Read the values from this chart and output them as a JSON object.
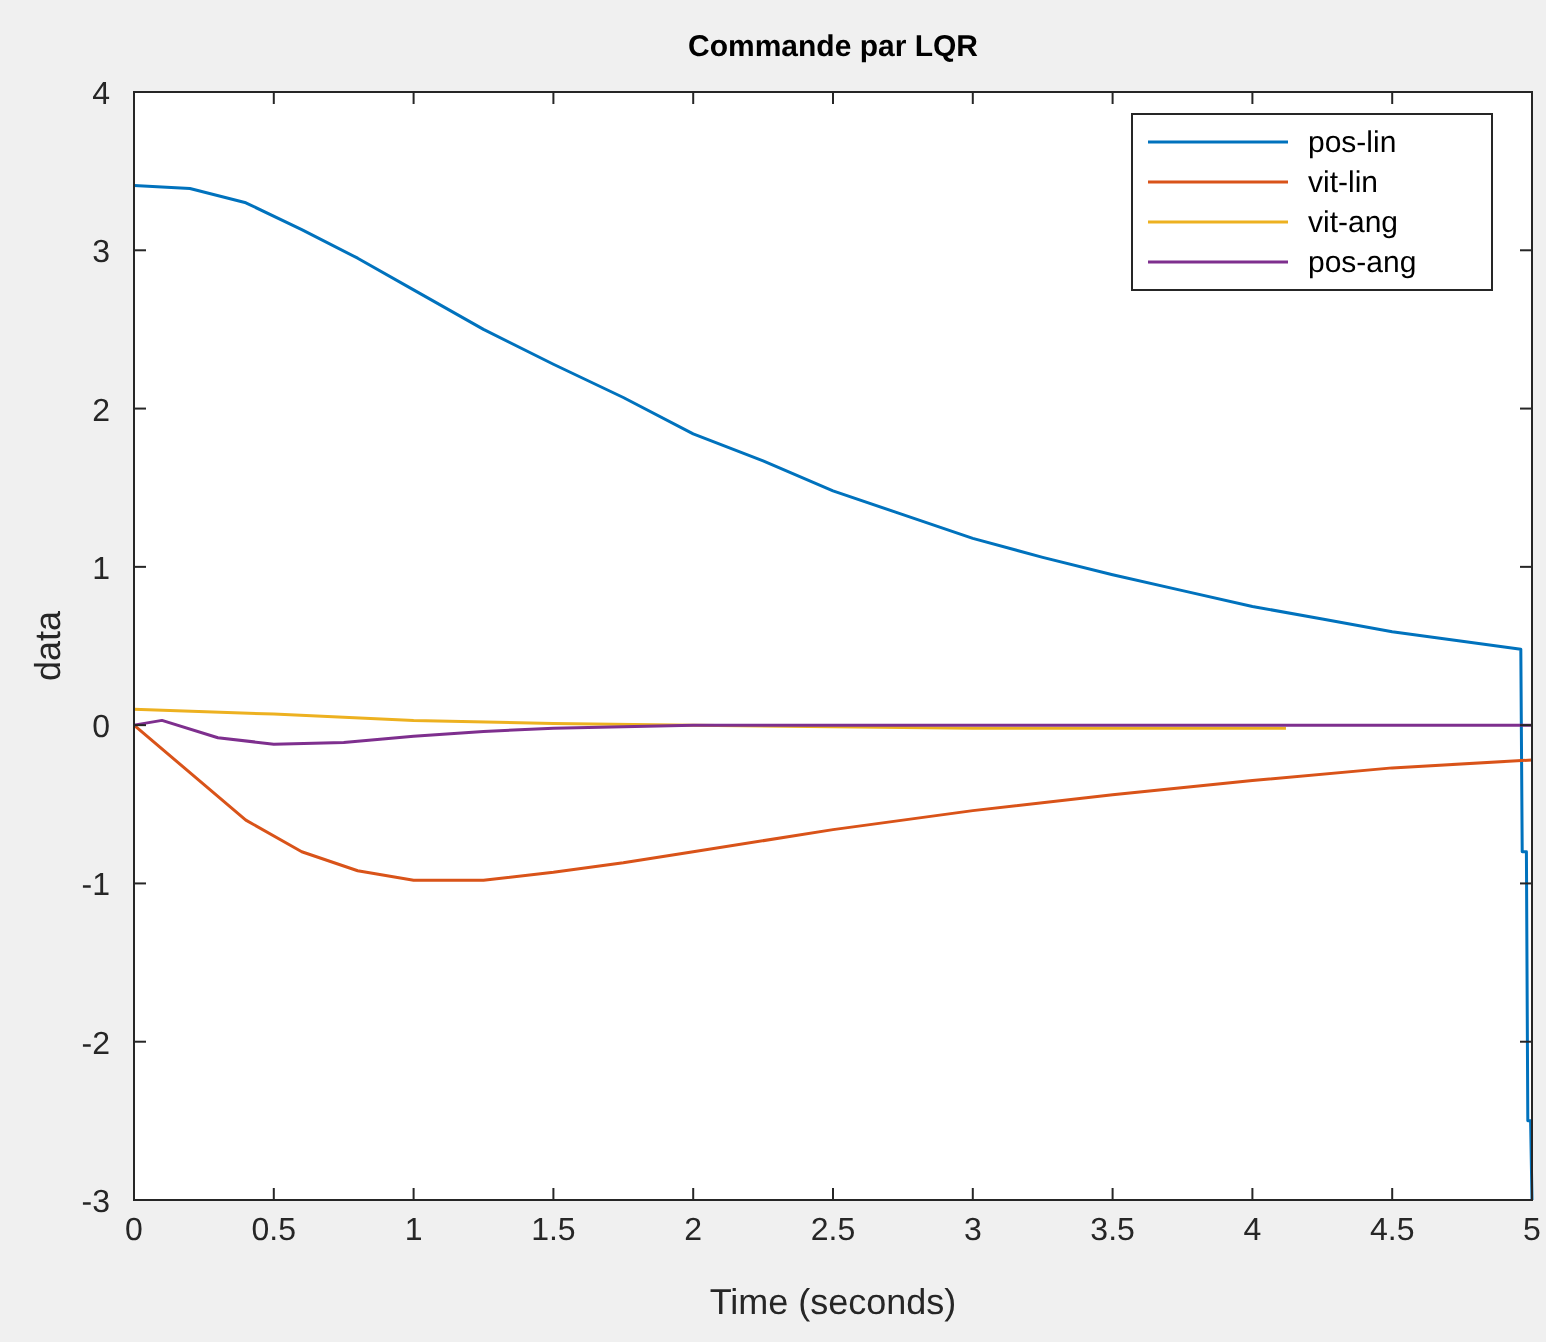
{
  "chart_data": {
    "type": "line",
    "title": "Commande par LQR",
    "xlabel": "Time (seconds)",
    "ylabel": "data",
    "xlim": [
      0,
      5
    ],
    "ylim": [
      -3,
      4
    ],
    "xticks": [
      0,
      0.5,
      1,
      1.5,
      2,
      2.5,
      3,
      3.5,
      4,
      4.5,
      5
    ],
    "yticks": [
      -3,
      -2,
      -1,
      0,
      1,
      2,
      3,
      4
    ],
    "grid": false,
    "legend": "top right",
    "line_style": "solid",
    "marker": "none",
    "series": [
      {
        "name": "pos-lin",
        "color": "#0072bd",
        "x": [
          0,
          0.2,
          0.4,
          0.6,
          0.8,
          1,
          1.25,
          1.5,
          1.75,
          2,
          2.25,
          2.5,
          2.75,
          3,
          3.25,
          3.5,
          3.75,
          4,
          4.25,
          4.5,
          4.75,
          4.96,
          4.965,
          4.98,
          4.985,
          4.995,
          5
        ],
        "values": [
          3.41,
          3.39,
          3.3,
          3.13,
          2.95,
          2.75,
          2.5,
          2.28,
          2.07,
          1.84,
          1.67,
          1.48,
          1.33,
          1.18,
          1.06,
          0.95,
          0.85,
          0.75,
          0.67,
          0.59,
          0.53,
          0.48,
          -0.8,
          -0.8,
          -2.5,
          -2.5,
          -3
        ]
      },
      {
        "name": "vit-lin",
        "color": "#d95319",
        "x": [
          0,
          0.2,
          0.4,
          0.6,
          0.8,
          1,
          1.25,
          1.5,
          1.75,
          2,
          2.5,
          3,
          3.5,
          4,
          4.5,
          5
        ],
        "values": [
          0,
          -0.3,
          -0.6,
          -0.8,
          -0.92,
          -0.98,
          -0.98,
          -0.93,
          -0.87,
          -0.8,
          -0.66,
          -0.54,
          -0.44,
          -0.35,
          -0.27,
          -0.22
        ]
      },
      {
        "name": "vit-ang",
        "color": "#edb120",
        "x": [
          0,
          0.5,
          1,
          1.5,
          2,
          3,
          4.12
        ],
        "values": [
          0.1,
          0.07,
          0.03,
          0.01,
          0,
          -0.02,
          -0.02
        ]
      },
      {
        "name": "pos-ang",
        "color": "#7e2f8e",
        "x": [
          0,
          0.1,
          0.3,
          0.5,
          0.75,
          1,
          1.25,
          1.5,
          2,
          5
        ],
        "values": [
          0,
          0.03,
          -0.08,
          -0.12,
          -0.11,
          -0.07,
          -0.04,
          -0.02,
          0,
          0
        ]
      }
    ]
  }
}
